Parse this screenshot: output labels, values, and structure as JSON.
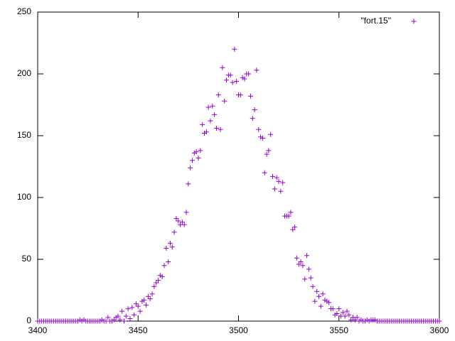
{
  "chart_data": {
    "type": "scatter",
    "legend": "top-right",
    "grid": false,
    "xlim": [
      3400,
      3600
    ],
    "ylim": [
      0,
      250
    ],
    "xticks": [
      3400,
      3450,
      3500,
      3550,
      3600
    ],
    "yticks": [
      0,
      50,
      100,
      150,
      200,
      250
    ],
    "series": [
      {
        "name": "\"fort.15\"",
        "color": "#9400d3",
        "x": [
          3400,
          3401,
          3402,
          3403,
          3404,
          3405,
          3406,
          3407,
          3408,
          3409,
          3410,
          3411,
          3412,
          3413,
          3414,
          3415,
          3416,
          3417,
          3418,
          3419,
          3420,
          3421,
          3422,
          3423,
          3424,
          3425,
          3426,
          3427,
          3428,
          3429,
          3430,
          3431,
          3432,
          3433,
          3434,
          3435,
          3436,
          3437,
          3438,
          3439,
          3440,
          3441,
          3442,
          3443,
          3444,
          3445,
          3446,
          3447,
          3448,
          3449,
          3450,
          3451,
          3452,
          3453,
          3454,
          3455,
          3456,
          3457,
          3458,
          3459,
          3460,
          3461,
          3462,
          3463,
          3464,
          3465,
          3466,
          3467,
          3468,
          3469,
          3470,
          3471,
          3472,
          3473,
          3474,
          3475,
          3476,
          3477,
          3478,
          3479,
          3480,
          3481,
          3482,
          3483,
          3484,
          3485,
          3486,
          3487,
          3488,
          3489,
          3490,
          3491,
          3492,
          3493,
          3494,
          3495,
          3496,
          3497,
          3498,
          3499,
          3500,
          3501,
          3502,
          3503,
          3504,
          3505,
          3506,
          3507,
          3508,
          3509,
          3510,
          3511,
          3512,
          3513,
          3514,
          3515,
          3516,
          3517,
          3518,
          3519,
          3520,
          3521,
          3522,
          3523,
          3524,
          3525,
          3526,
          3527,
          3528,
          3529,
          3530,
          3531,
          3532,
          3533,
          3534,
          3535,
          3536,
          3537,
          3538,
          3539,
          3540,
          3541,
          3542,
          3543,
          3544,
          3545,
          3546,
          3547,
          3548,
          3549,
          3550,
          3551,
          3552,
          3553,
          3554,
          3555,
          3556,
          3557,
          3558,
          3559,
          3560,
          3561,
          3562,
          3563,
          3564,
          3565,
          3566,
          3567,
          3568,
          3569,
          3570,
          3571,
          3572,
          3573,
          3574,
          3575,
          3576,
          3577,
          3578,
          3579,
          3580,
          3581,
          3582,
          3583,
          3584,
          3585,
          3586,
          3587,
          3588,
          3589,
          3590,
          3591,
          3592,
          3593,
          3594,
          3595,
          3596,
          3597,
          3598,
          3599,
          3600
        ],
        "values": [
          0,
          0,
          0,
          0,
          0,
          0,
          0,
          0,
          0,
          0,
          0,
          0,
          0,
          0,
          0,
          0,
          0,
          0,
          0,
          0,
          0,
          1,
          0,
          1,
          0,
          0,
          0,
          0,
          0,
          0,
          0,
          0,
          1,
          0,
          0,
          3,
          0,
          0,
          1,
          3,
          4,
          1,
          8,
          0,
          4,
          10,
          2,
          11,
          5,
          14,
          12,
          8,
          16,
          17,
          13,
          20,
          18,
          22,
          28,
          31,
          33,
          37,
          36,
          45,
          59,
          48,
          63,
          60,
          72,
          83,
          81,
          78,
          80,
          78,
          88,
          111,
          124,
          130,
          136,
          137,
          132,
          138,
          159,
          152,
          153,
          173,
          162,
          174,
          167,
          156,
          183,
          155,
          205,
          178,
          195,
          199,
          199,
          193,
          220,
          194,
          183,
          183,
          197,
          196,
          200,
          200,
          182,
          164,
          171,
          203,
          155,
          149,
          148,
          120,
          135,
          138,
          151,
          117,
          107,
          116,
          113,
          105,
          112,
          85,
          85,
          85,
          88,
          74,
          76,
          51,
          46,
          48,
          45,
          34,
          53,
          42,
          35,
          28,
          16,
          24,
          20,
          12,
          22,
          17,
          16,
          15,
          10,
          10,
          5,
          6,
          10,
          4,
          7,
          4,
          8,
          5,
          1,
          3,
          1,
          3,
          0,
          1,
          0,
          0,
          1,
          0,
          1,
          1,
          1,
          0,
          0,
          0,
          0,
          0,
          0,
          0,
          0,
          0,
          0,
          0,
          0,
          0,
          0,
          0,
          0,
          0,
          0,
          0,
          0,
          0,
          0,
          0,
          0,
          0,
          0,
          0,
          0,
          0,
          0,
          0,
          0
        ]
      }
    ]
  }
}
